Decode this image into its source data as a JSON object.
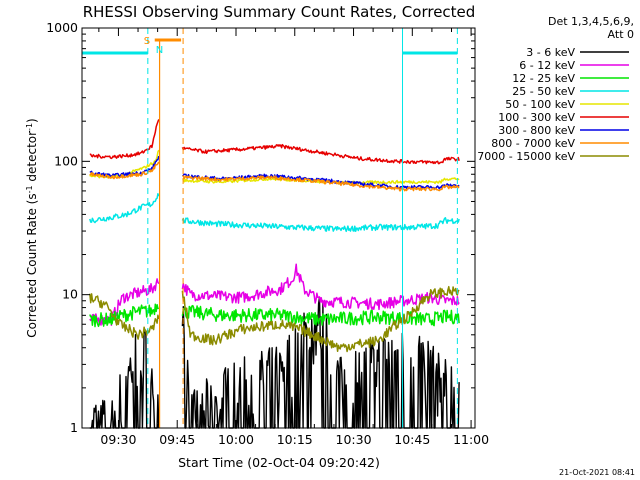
{
  "chart_data": {
    "type": "line",
    "title": "RHESSI Observing Summary Count Rates, Corrected",
    "xlabel": "Start Time (02-Oct-04 09:20:42)",
    "ylabel_parts": [
      "Corrected Count Rate (s",
      "-1",
      " detector",
      "-1",
      ")"
    ],
    "x_range": [
      "09:20:42",
      "11:01:00"
    ],
    "x_ticks": [
      "09:30",
      "09:45",
      "10:00",
      "10:15",
      "10:30",
      "10:45",
      "11:00"
    ],
    "y_scale": "log",
    "ylim": [
      1,
      1000
    ],
    "y_ticks": [
      "1",
      "10",
      "100",
      "1000"
    ],
    "legend_header": [
      "Det 1,3,4,5,6,9,",
      "Att 0"
    ],
    "legend_position": "top-right, outside plot",
    "series": [
      {
        "name": "3 - 6 keV",
        "color": "#000000"
      },
      {
        "name": "6 - 12 keV",
        "color": "#e600e6"
      },
      {
        "name": "12 - 25 keV",
        "color": "#00e600"
      },
      {
        "name": "25 - 50 keV",
        "color": "#00e6e6"
      },
      {
        "name": "50 - 100 keV",
        "color": "#e6e600"
      },
      {
        "name": "100 - 300 keV",
        "color": "#e60000"
      },
      {
        "name": "300 - 800 keV",
        "color": "#0000e6"
      },
      {
        "name": "800 - 7000 keV",
        "color": "#ff8c00"
      },
      {
        "name": "7000 - 15000 keV",
        "color": "#8b8b00"
      }
    ],
    "data_gap": {
      "start": "09:40:30",
      "end": "09:46:20"
    },
    "flags": [
      {
        "label": "S",
        "color": "#ff8c00",
        "start": "09:38:30",
        "end": "09:46:30"
      },
      {
        "label": "N",
        "color": "#00e6e6",
        "start": "09:37:30",
        "end": "09:38:30"
      }
    ],
    "saa_segments": [
      {
        "start": "09:20:42",
        "end": "09:37:30",
        "level": 650
      },
      {
        "start": "10:42:30",
        "end": "10:56:30",
        "level": 650
      }
    ],
    "vertical_markers": [
      {
        "time": "09:37:30",
        "color": "#00e6e6",
        "style": "dashed"
      },
      {
        "time": "09:46:30",
        "color": "#ff8c00",
        "style": "dashed"
      },
      {
        "time": "10:42:30",
        "color": "#00e6e6",
        "style": "solid"
      },
      {
        "time": "10:56:30",
        "color": "#00e6e6",
        "style": "dashed"
      }
    ],
    "footer_date": "21-Oct-2021 08:41"
  }
}
